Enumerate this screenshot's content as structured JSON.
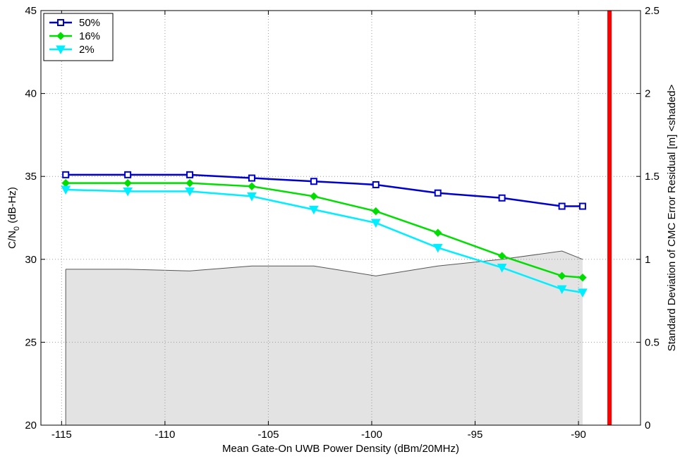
{
  "chart_data": {
    "type": "line",
    "title": "",
    "xlabel": "Mean Gate-On UWB Power Density (dBm/20MHz)",
    "ylabel_main": "C/N",
    "ylabel_sub": "0",
    "ylabel_tail": " (dB-Hz)",
    "y2label": "Standard Deviation of CMC Error Residual [m] <shaded>",
    "xlim": [
      -116,
      -87
    ],
    "ylim": [
      20,
      45
    ],
    "y2lim": [
      0,
      2.5
    ],
    "xticks": [
      -115,
      -110,
      -105,
      -100,
      -95,
      -90
    ],
    "xtick_labels": [
      "-115",
      "-110",
      "-105",
      "-100",
      "-95",
      "-90"
    ],
    "yticks": [
      20,
      25,
      30,
      35,
      40,
      45
    ],
    "ytick_labels": [
      "20",
      "25",
      "30",
      "35",
      "40",
      "45"
    ],
    "y2ticks": [
      0,
      0.5,
      1,
      1.5,
      2,
      2.5
    ],
    "y2tick_labels": [
      "0",
      "0.5",
      "1",
      "1.5",
      "2",
      "2.5"
    ],
    "grid": true,
    "legend_position": "top-left",
    "series": [
      {
        "name": "50%",
        "color": "#0000cc",
        "marker": "square",
        "x": [
          -114.8,
          -111.8,
          -108.8,
          -105.8,
          -102.8,
          -99.8,
          -96.8,
          -93.7,
          -90.8,
          -89.8
        ],
        "y": [
          35.1,
          35.1,
          35.1,
          34.9,
          34.7,
          34.5,
          34.0,
          33.7,
          33.2,
          33.2
        ]
      },
      {
        "name": "16%",
        "color": "#00dd00",
        "marker": "diamond",
        "x": [
          -114.8,
          -111.8,
          -108.8,
          -105.8,
          -102.8,
          -99.8,
          -96.8,
          -93.7,
          -90.8,
          -89.8
        ],
        "y": [
          34.6,
          34.6,
          34.6,
          34.4,
          33.8,
          32.9,
          31.6,
          30.2,
          29.0,
          28.9
        ]
      },
      {
        "name": "2%",
        "color": "#00eeff",
        "marker": "triangle-down",
        "x": [
          -114.8,
          -111.8,
          -108.8,
          -105.8,
          -102.8,
          -99.8,
          -96.8,
          -93.7,
          -90.8,
          -89.8
        ],
        "y": [
          34.2,
          34.1,
          34.1,
          33.8,
          33.0,
          32.2,
          30.7,
          29.5,
          28.2,
          28.0
        ]
      }
    ],
    "shaded_area": {
      "axis": "right",
      "fill": "#e3e3e3",
      "stroke": "#555555",
      "x": [
        -114.8,
        -111.8,
        -108.8,
        -105.8,
        -102.8,
        -99.8,
        -96.8,
        -93.7,
        -90.8,
        -89.8
      ],
      "y": [
        0.94,
        0.94,
        0.93,
        0.96,
        0.96,
        0.9,
        0.96,
        1.0,
        1.05,
        1.0
      ]
    },
    "vertical_line": {
      "x": -88.5,
      "color": "#ff0000"
    }
  }
}
